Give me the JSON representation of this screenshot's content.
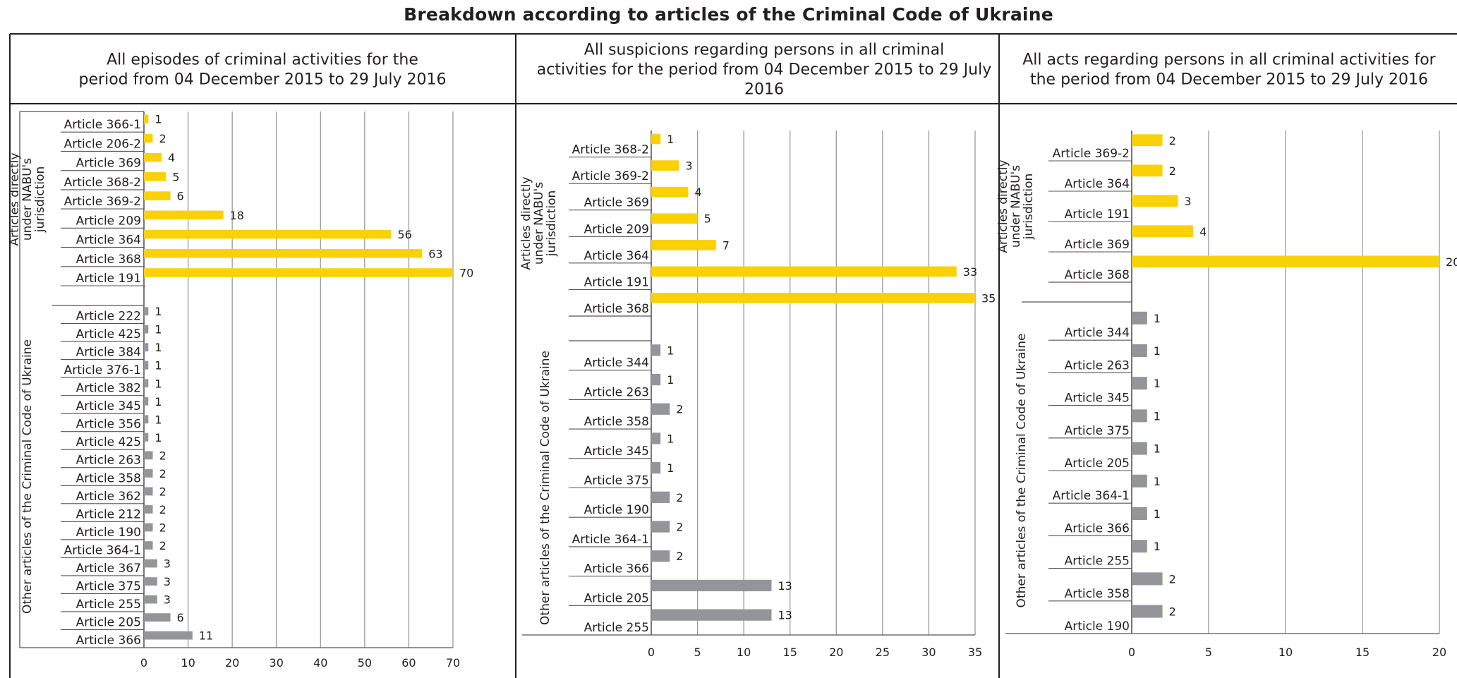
{
  "title": "Breakdown according to articles of the Criminal Code of Ukraine",
  "colors": {
    "nabu": "#f9d104",
    "other": "#939598",
    "text": "#231f20",
    "grid": "#9a9a9a",
    "frame": "#231f20"
  },
  "chart_data": [
    {
      "type": "bar",
      "orientation": "horizontal",
      "title": "All episodes of criminal activities for the period from 04 December 2015 to 29 July 2016",
      "xlim": [
        0,
        70
      ],
      "xticks": [
        0,
        10,
        20,
        30,
        40,
        50,
        60,
        70
      ],
      "grid": true,
      "groups": [
        {
          "name": "Articles directly under NABU's jurisdiction",
          "color": "#f9d104",
          "categories": [
            "Article 366-1",
            "Article 206-2",
            "Article 369",
            "Article 368-2",
            "Article 369-2",
            "Article 209",
            "Article 364",
            "Article 368",
            "Article 191"
          ],
          "values": [
            1,
            2,
            4,
            5,
            6,
            18,
            56,
            63,
            70
          ]
        },
        {
          "name": "Other articles of the Criminal Code of Ukraine",
          "color": "#939598",
          "categories": [
            "Article 222",
            "Article 425",
            "Article 384",
            "Article 376-1",
            "Article 382",
            "Article 345",
            "Article 356",
            "Article 425",
            "Article 263",
            "Article 358",
            "Article 362",
            "Article 212",
            "Article 190",
            "Article 364-1",
            "Article 367",
            "Article 375",
            "Article 255",
            "Article 205",
            "Article 366"
          ],
          "values": [
            1,
            1,
            1,
            1,
            1,
            1,
            1,
            1,
            2,
            2,
            2,
            2,
            2,
            2,
            3,
            3,
            3,
            6,
            11
          ]
        }
      ]
    },
    {
      "type": "bar",
      "orientation": "horizontal",
      "title": "All suspicions regarding persons in all criminal activities for the period from 04 December 2015 to 29 July 2016",
      "xlim": [
        0,
        35
      ],
      "xticks": [
        0,
        5,
        10,
        15,
        20,
        25,
        30,
        35
      ],
      "grid": true,
      "groups": [
        {
          "name": "Articles directly under NABU's jurisdiction",
          "color": "#f9d104",
          "categories": [
            "Article 368-2",
            "Article 369-2",
            "Article 369",
            "Article 209",
            "Article 364",
            "Article 191",
            "Article 368"
          ],
          "values": [
            1,
            3,
            4,
            5,
            7,
            33,
            35
          ]
        },
        {
          "name": "Other articles of the Criminal Code of Ukraine",
          "color": "#939598",
          "categories": [
            "Article 344",
            "Article 263",
            "Article 358",
            "Article 345",
            "Article 375",
            "Article 190",
            "Article 364-1",
            "Article 366",
            "Article 205",
            "Article 255"
          ],
          "values": [
            1,
            1,
            2,
            1,
            1,
            2,
            2,
            2,
            13,
            13
          ]
        }
      ]
    },
    {
      "type": "bar",
      "orientation": "horizontal",
      "title": "All acts regarding persons in all criminal activities for the period from 04 December 2015 to 29 July 2016",
      "xlim": [
        0,
        20
      ],
      "xticks": [
        0,
        5,
        10,
        15,
        20
      ],
      "grid": true,
      "groups": [
        {
          "name": "Articles directly under NABU's jurisdiction",
          "color": "#f9d104",
          "categories": [
            "Article 369-2",
            "Article 364",
            "Article 191",
            "Article 369",
            "Article 368"
          ],
          "values": [
            2,
            2,
            3,
            4,
            20
          ]
        },
        {
          "name": "Other articles of the Criminal Code of Ukraine",
          "color": "#939598",
          "categories": [
            "Article 344",
            "Article 263",
            "Article 345",
            "Article 375",
            "Article 205",
            "Article 364-1",
            "Article 366",
            "Article 255",
            "Article 358",
            "Article 190"
          ],
          "values": [
            1,
            1,
            1,
            1,
            1,
            1,
            1,
            1,
            2,
            2
          ]
        }
      ]
    }
  ]
}
